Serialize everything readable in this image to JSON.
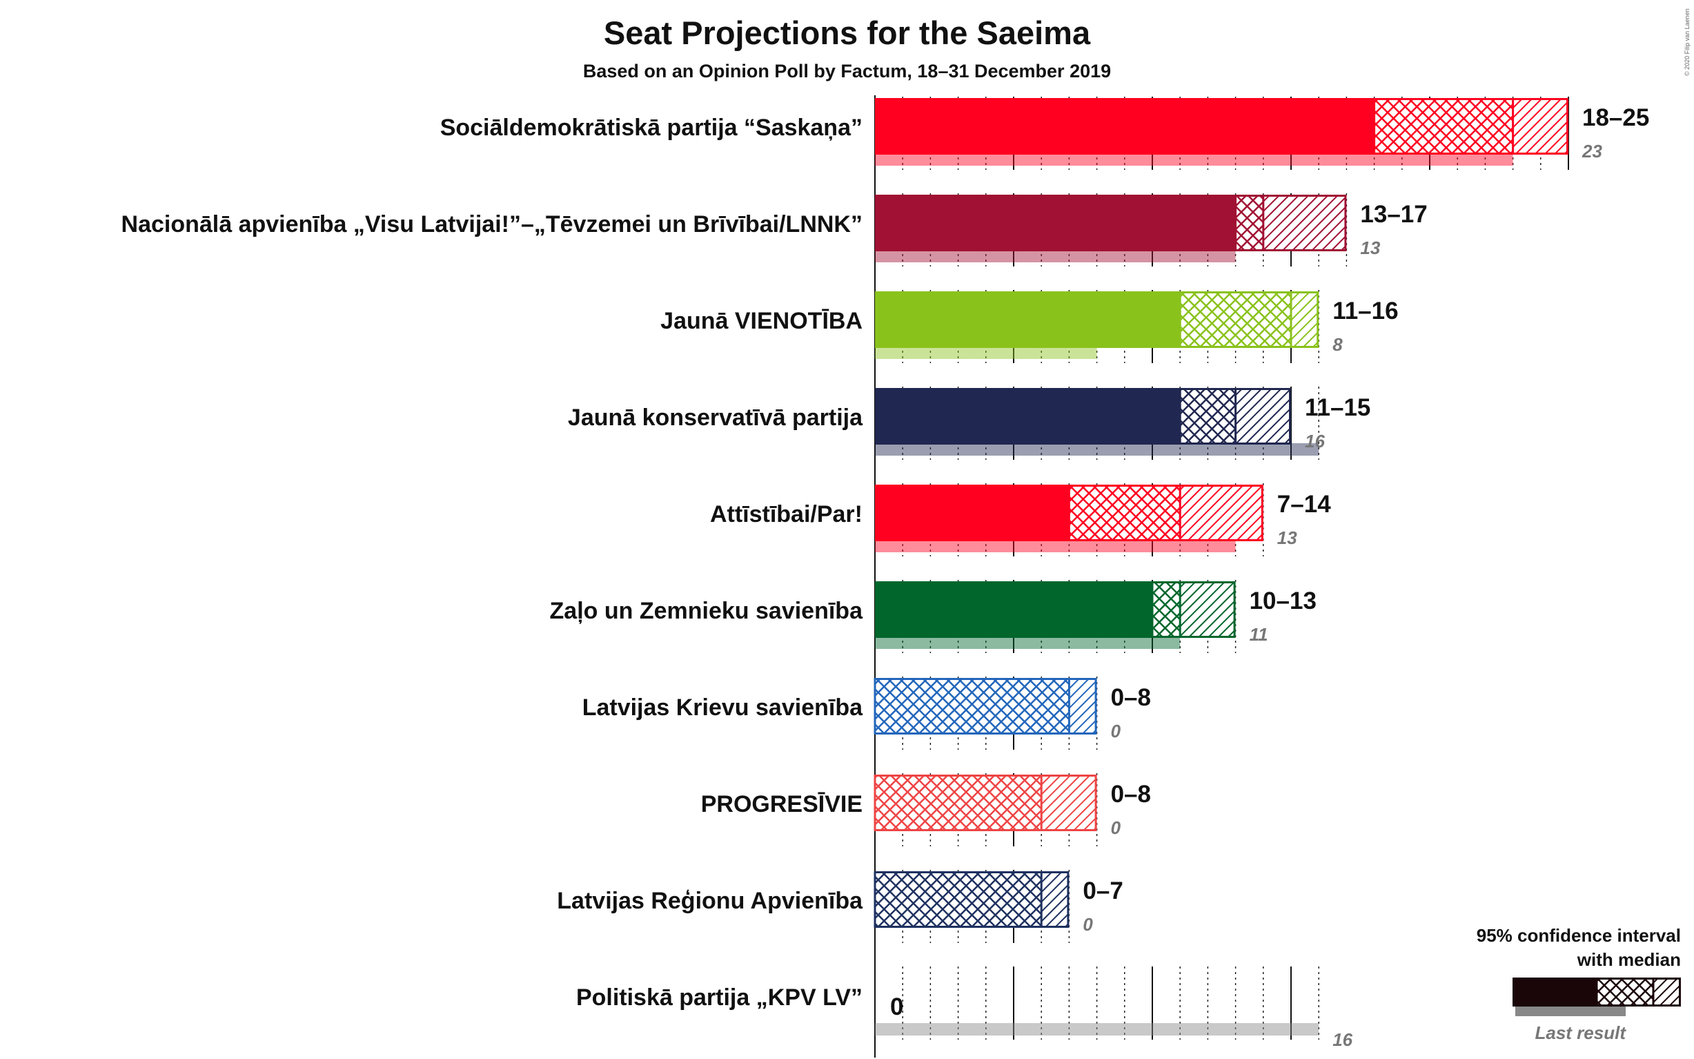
{
  "chart_data": {
    "type": "bar",
    "title": "Seat Projections for the Saeima",
    "subtitle": "Based on an Opinion Poll by Factum, 18–31 December 2019",
    "copyright": "© 2020 Filip van Laenen",
    "xlim": [
      0,
      25
    ],
    "series": [
      {
        "name": "Sociāldemokrātiskā partija “Saskaņa”",
        "color": "#FF0020",
        "low": 18,
        "median": 23,
        "high": 25,
        "range_label": "18–25",
        "last": 23,
        "last_label": "23"
      },
      {
        "name": "Nacionālā apvienība „Visu Latvijai!”–„Tēvzemei un Brīvībai/LNNK”",
        "color": "#A11133",
        "low": 13,
        "median": 14,
        "high": 17,
        "range_label": "13–17",
        "last": 13,
        "last_label": "13"
      },
      {
        "name": "Jaunā VIENOTĪBA",
        "color": "#8AC21C",
        "low": 11,
        "median": 15,
        "high": 16,
        "range_label": "11–16",
        "last": 8,
        "last_label": "8"
      },
      {
        "name": "Jaunā konservatīvā partija",
        "color": "#202750",
        "low": 11,
        "median": 13,
        "high": 15,
        "range_label": "11–15",
        "last": 16,
        "last_label": "16"
      },
      {
        "name": "Attīstībai/Par!",
        "color": "#FF0020",
        "low": 7,
        "median": 11,
        "high": 14,
        "range_label": "7–14",
        "last": 13,
        "last_label": "13"
      },
      {
        "name": "Zaļo un Zemnieku savienība",
        "color": "#00662C",
        "low": 10,
        "median": 11,
        "high": 13,
        "range_label": "10–13",
        "last": 11,
        "last_label": "11"
      },
      {
        "name": "Latvijas Krievu savienība",
        "color": "#2266BB",
        "low": 0,
        "median": 7,
        "high": 8,
        "range_label": "0–8",
        "last": 0,
        "last_label": "0"
      },
      {
        "name": "PROGRESĪVIE",
        "color": "#EE4444",
        "low": 0,
        "median": 6,
        "high": 8,
        "range_label": "0–8",
        "last": 0,
        "last_label": "0"
      },
      {
        "name": "Latvijas Reģionu Apvienība",
        "color": "#1E3160",
        "low": 0,
        "median": 6,
        "high": 7,
        "range_label": "0–7",
        "last": 0,
        "last_label": "0"
      },
      {
        "name": "Politiskā partija „KPV LV”",
        "color": "#888888",
        "low": 0,
        "median": 0,
        "high": 0,
        "range_label": "0",
        "last": 16,
        "last_label": "16"
      }
    ],
    "legend": {
      "line1": "95% confidence interval",
      "line2": "with median",
      "last_result": "Last result"
    }
  }
}
